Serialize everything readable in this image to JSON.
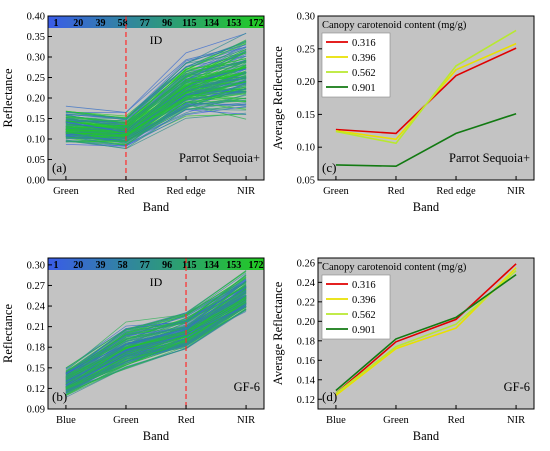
{
  "colors": {
    "plot_bg": "#c3c3c3",
    "ref_line": "#ff2a2a",
    "colorbar_low": "#3a5ce8",
    "colorbar_high": "#22cc22"
  },
  "chart_data": [
    {
      "panel": "a",
      "type": "line",
      "title": "",
      "xlabel": "Band",
      "ylabel": "Reflectance",
      "categories": [
        "Green",
        "Red",
        "Red edge",
        "NIR"
      ],
      "ylim": [
        0.0,
        0.4
      ],
      "yticks": [
        "0.00",
        "0.05",
        "0.10",
        "0.15",
        "0.20",
        "0.25",
        "0.30",
        "0.35",
        "0.40"
      ],
      "annotation": "Parrot Sequoia+",
      "reference_line_category": "Red",
      "colorbar": {
        "label": "ID",
        "ticks": [
          "1",
          "20",
          "39",
          "58",
          "77",
          "96",
          "115",
          "134",
          "153",
          "172"
        ],
        "range": [
          1,
          172
        ]
      },
      "series_summary": {
        "count": 172,
        "mean": [
          0.125,
          0.115,
          0.22,
          0.26
        ],
        "min": [
          0.08,
          0.07,
          0.14,
          0.13
        ],
        "max": [
          0.18,
          0.165,
          0.31,
          0.375
        ]
      }
    },
    {
      "panel": "b",
      "type": "line",
      "title": "",
      "xlabel": "Band",
      "ylabel": "Reflectance",
      "categories": [
        "Blue",
        "Green",
        "Red",
        "NIR"
      ],
      "ylim": [
        0.09,
        0.31
      ],
      "yticks": [
        "0.09",
        "0.12",
        "0.15",
        "0.18",
        "0.21",
        "0.24",
        "0.27",
        "0.30"
      ],
      "annotation": "GF-6",
      "reference_line_category": "Red",
      "colorbar": {
        "label": "ID",
        "ticks": [
          "1",
          "20",
          "39",
          "58",
          "77",
          "96",
          "115",
          "134",
          "153",
          "172"
        ],
        "range": [
          1,
          172
        ]
      },
      "series_summary": {
        "count": 172,
        "mean": [
          0.127,
          0.177,
          0.202,
          0.255
        ],
        "min": [
          0.103,
          0.14,
          0.168,
          0.225
        ],
        "max": [
          0.157,
          0.222,
          0.243,
          0.302
        ]
      }
    },
    {
      "panel": "c",
      "type": "line",
      "title": "",
      "xlabel": "Band",
      "ylabel": "Average Reflectance",
      "categories": [
        "Green",
        "Red",
        "Red edge",
        "NIR"
      ],
      "ylim": [
        0.05,
        0.3
      ],
      "yticks": [
        "0.05",
        "0.10",
        "0.15",
        "0.20",
        "0.25",
        "0.30"
      ],
      "annotation": "Parrot Sequoia+",
      "legend_title": "Canopy carotenoid content (mg/g)",
      "legend_position": "top-left",
      "series": [
        {
          "name": "0.316",
          "color": "#e00000",
          "values": [
            0.127,
            0.121,
            0.209,
            0.251
          ]
        },
        {
          "name": "0.396",
          "color": "#e8e000",
          "values": [
            0.125,
            0.112,
            0.218,
            0.258
          ]
        },
        {
          "name": "0.562",
          "color": "#b8e830",
          "values": [
            0.124,
            0.106,
            0.224,
            0.278
          ]
        },
        {
          "name": "0.901",
          "color": "#127a12",
          "values": [
            0.073,
            0.071,
            0.121,
            0.151
          ]
        }
      ]
    },
    {
      "panel": "d",
      "type": "line",
      "title": "",
      "xlabel": "Band",
      "ylabel": "Average Reflectance",
      "categories": [
        "Blue",
        "Green",
        "Red",
        "NIR"
      ],
      "ylim": [
        0.11,
        0.265
      ],
      "yticks": [
        "0.12",
        "0.14",
        "0.16",
        "0.18",
        "0.20",
        "0.22",
        "0.24",
        "0.26"
      ],
      "annotation": "GF-6",
      "legend_title": "Canopy carotenoid content (mg/g)",
      "legend_position": "top-left",
      "series": [
        {
          "name": "0.316",
          "color": "#e00000",
          "values": [
            0.126,
            0.179,
            0.202,
            0.259
          ]
        },
        {
          "name": "0.396",
          "color": "#e8e000",
          "values": [
            0.124,
            0.172,
            0.193,
            0.255
          ]
        },
        {
          "name": "0.562",
          "color": "#b8e830",
          "values": [
            0.126,
            0.174,
            0.197,
            0.252
          ]
        },
        {
          "name": "0.901",
          "color": "#127a12",
          "values": [
            0.129,
            0.182,
            0.204,
            0.248
          ]
        }
      ]
    }
  ]
}
